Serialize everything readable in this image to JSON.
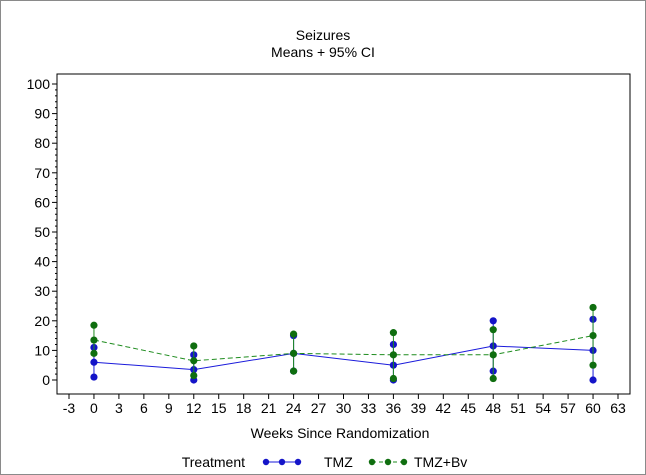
{
  "chart_data": {
    "type": "line",
    "title": "Seizures",
    "subtitle": "Means + 95% CI",
    "xlabel": "Weeks Since Randomization",
    "ylabel": "",
    "xlim": [
      -3,
      63
    ],
    "ylim": [
      0,
      100
    ],
    "x_ticks": [
      -3,
      0,
      3,
      6,
      9,
      12,
      15,
      18,
      21,
      24,
      27,
      30,
      33,
      36,
      39,
      42,
      45,
      48,
      51,
      54,
      57,
      60,
      63
    ],
    "y_ticks": [
      0,
      10,
      20,
      30,
      40,
      50,
      60,
      70,
      80,
      90,
      100
    ],
    "grid": false,
    "legend": {
      "title": "Treatment",
      "placement": "bottom"
    },
    "x": [
      0,
      12,
      24,
      36,
      48,
      60
    ],
    "series": [
      {
        "name": "TMZ",
        "color": "#1a1adb",
        "marker_color": "#1414c8",
        "line_style": "solid",
        "means": [
          6,
          3.5,
          9,
          5,
          11.5,
          10
        ],
        "lower": [
          1,
          0,
          3,
          0,
          3,
          0
        ],
        "upper": [
          11,
          8.5,
          15,
          12,
          20,
          20.5
        ]
      },
      {
        "name": "TMZ+Bv",
        "color": "#1e8c1e",
        "marker_color": "#0f6e0f",
        "line_style": "dashed",
        "means": [
          13.5,
          6.5,
          9,
          8.5,
          8.5,
          15
        ],
        "lower": [
          9,
          1.5,
          3,
          0.5,
          0.5,
          5
        ],
        "upper": [
          18.5,
          11.5,
          15.5,
          16,
          17,
          24.5
        ]
      }
    ]
  }
}
